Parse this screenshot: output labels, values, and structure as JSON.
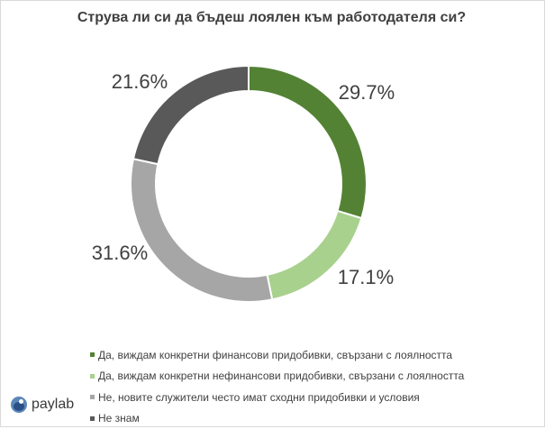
{
  "chart_data": {
    "type": "pie",
    "donut": true,
    "title": "Струва ли си да бъдеш лоялен към работодателя си?",
    "slices": [
      {
        "label": "Да, виждам конкретни финансови придобивки, свързани с лоялността",
        "value": 29.7,
        "value_label": "29.7%",
        "color": "#548235"
      },
      {
        "label": "Да, виждам конкретни нефинансови придобивки, свързани с лоялността",
        "value": 17.1,
        "value_label": "17.1%",
        "color": "#a9d18e"
      },
      {
        "label": "Не, новите служители често имат сходни придобивки и условия",
        "value": 31.6,
        "value_label": "31.6%",
        "color": "#a6a6a6"
      },
      {
        "label": "Не знам",
        "value": 21.6,
        "value_label": "21.6%",
        "color": "#595959"
      }
    ],
    "legend_position": "bottom"
  },
  "logo": {
    "text": "paylab",
    "icon": "paylab-logo-icon"
  }
}
